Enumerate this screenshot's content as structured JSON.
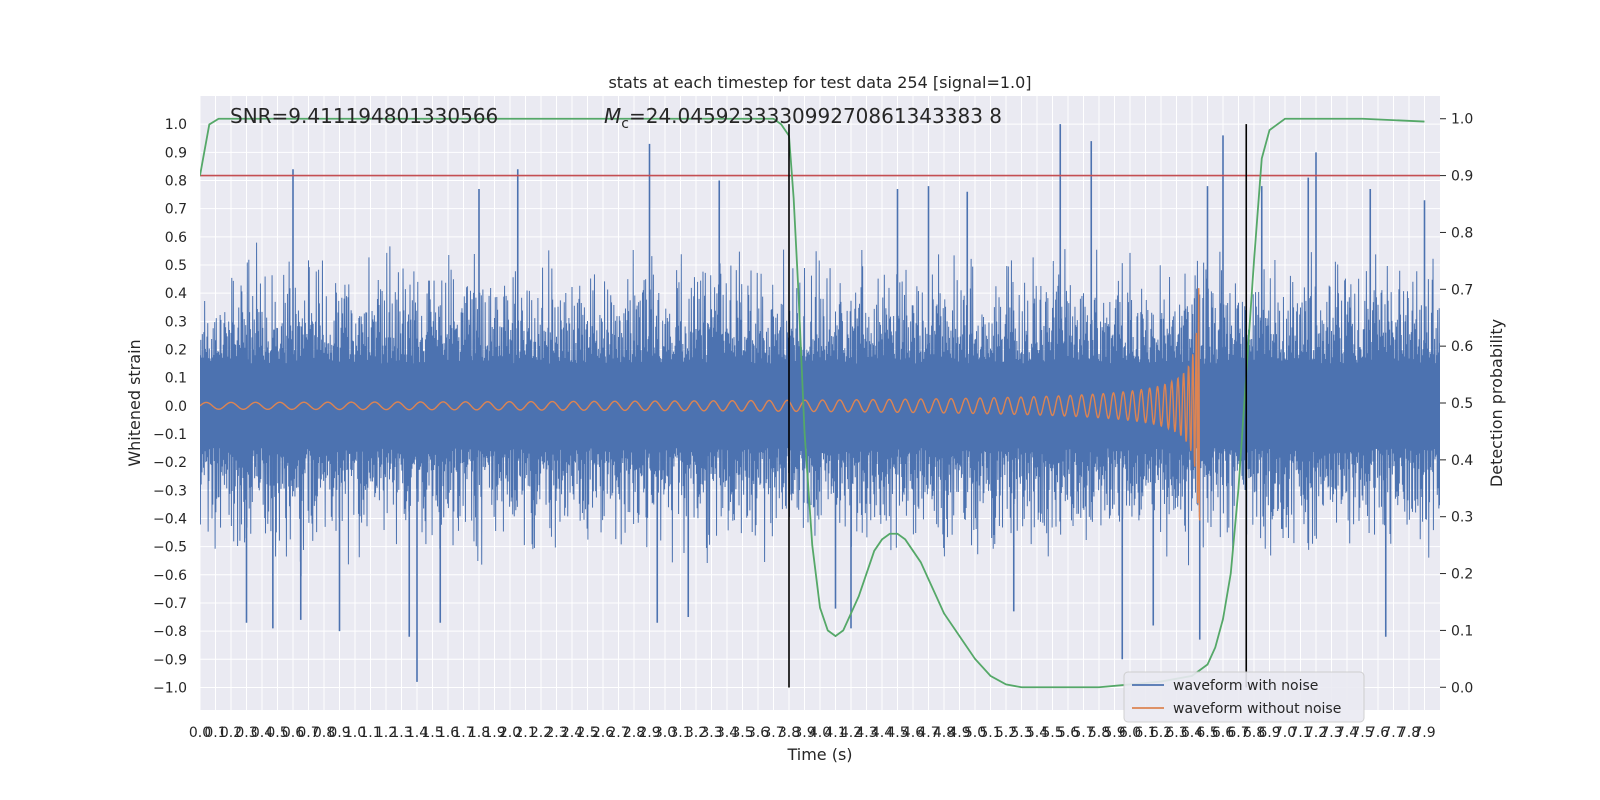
{
  "chart_data": {
    "type": "line",
    "title": "stats at each timestep for test data 254 [signal=1.0]",
    "xlabel": "Time (s)",
    "ylabel_left": "Whitened strain",
    "ylabel_right": "Detection probability",
    "xlim": [
      0.0,
      8.0
    ],
    "ylim_left": [
      -1.08,
      1.1
    ],
    "ylim_right": [
      -0.04,
      1.04
    ],
    "grid": true,
    "legend_position": "bottom-right",
    "annotations": {
      "snr": "SNR=9.411194801330566",
      "mc_prefix": "M",
      "mc_subscript": "c",
      "mc_value": "=24.045923333099270861343383 8"
    },
    "x_ticks": [
      "0.0",
      "0.1",
      "0.2",
      "0.3",
      "0.4",
      "0.5",
      "0.6",
      "0.7",
      "0.8",
      "0.9",
      "1.0",
      "1.1",
      "1.2",
      "1.3",
      "1.4",
      "1.5",
      "1.6",
      "1.7",
      "1.8",
      "1.9",
      "2.0",
      "2.1",
      "2.2",
      "2.3",
      "2.4",
      "2.5",
      "2.6",
      "2.7",
      "2.8",
      "2.9",
      "3.0",
      "3.1",
      "3.2",
      "3.3",
      "3.4",
      "3.5",
      "3.6",
      "3.7",
      "3.8",
      "3.9",
      "4.0",
      "4.1",
      "4.2",
      "4.3",
      "4.4",
      "4.5",
      "4.6",
      "4.7",
      "4.8",
      "4.9",
      "5.0",
      "5.1",
      "5.2",
      "5.3",
      "5.4",
      "5.5",
      "5.6",
      "5.7",
      "5.8",
      "5.9",
      "6.0",
      "6.1",
      "6.2",
      "6.3",
      "6.4",
      "6.5",
      "6.6",
      "6.7",
      "6.8",
      "6.9",
      "7.0",
      "7.1",
      "7.2",
      "7.3",
      "7.4",
      "7.5",
      "7.6",
      "7.7",
      "7.8",
      "7.9"
    ],
    "y_ticks_left": [
      "−1.0",
      "−0.9",
      "−0.8",
      "−0.7",
      "−0.6",
      "−0.5",
      "−0.4",
      "−0.3",
      "−0.2",
      "−0.1",
      "0.0",
      "0.1",
      "0.2",
      "0.3",
      "0.4",
      "0.5",
      "0.6",
      "0.7",
      "0.8",
      "0.9",
      "1.0"
    ],
    "y_ticks_right": [
      "0.0",
      "0.1",
      "0.2",
      "0.3",
      "0.4",
      "0.5",
      "0.6",
      "0.7",
      "0.8",
      "0.9",
      "1.0"
    ],
    "threshold": {
      "axis": "right",
      "value": 0.9,
      "color": "#c44e52"
    },
    "vertical_markers": [
      3.8,
      6.75
    ],
    "series": [
      {
        "name": "waveform with noise",
        "axis": "left",
        "color": "#4c72b0",
        "description_values": {
          "typical_abs_amplitude": 0.35,
          "max_spike": 1.0,
          "min_spike": -0.98
        },
        "spikes": [
          [
            0.6,
            0.84
          ],
          [
            2.05,
            0.84
          ],
          [
            2.9,
            0.93
          ],
          [
            5.55,
            1.0
          ],
          [
            5.75,
            0.94
          ],
          [
            6.6,
            0.96
          ],
          [
            7.2,
            0.9
          ],
          [
            1.4,
            -0.98
          ],
          [
            1.35,
            -0.82
          ],
          [
            5.95,
            -0.9
          ],
          [
            4.2,
            -0.79
          ],
          [
            0.3,
            -0.77
          ],
          [
            0.47,
            -0.79
          ],
          [
            0.65,
            -0.76
          ],
          [
            0.9,
            -0.8
          ],
          [
            1.55,
            -0.77
          ],
          [
            2.95,
            -0.77
          ],
          [
            3.15,
            -0.75
          ],
          [
            4.1,
            -0.72
          ],
          [
            5.25,
            -0.73
          ],
          [
            6.15,
            -0.78
          ],
          [
            6.45,
            -0.83
          ],
          [
            7.65,
            -0.82
          ],
          [
            1.8,
            0.77
          ],
          [
            3.35,
            0.8
          ],
          [
            4.5,
            0.77
          ],
          [
            4.7,
            0.78
          ],
          [
            4.95,
            0.76
          ],
          [
            6.5,
            0.78
          ],
          [
            6.85,
            0.78
          ],
          [
            7.15,
            0.81
          ],
          [
            7.55,
            0.77
          ],
          [
            7.9,
            0.73
          ]
        ]
      },
      {
        "name": "waveform without noise",
        "axis": "left",
        "color": "#dd8452",
        "chirp": {
          "start": 0.0,
          "end": 6.45,
          "start_amp": 0.0,
          "peak_amp": 0.42,
          "min_amp": -0.48
        }
      },
      {
        "name": "detection probability",
        "axis": "right",
        "color": "#55a868",
        "x": [
          0.0,
          0.06,
          0.12,
          0.2,
          0.5,
          1.0,
          2.0,
          3.0,
          3.5,
          3.7,
          3.75,
          3.8,
          3.83,
          3.86,
          3.9,
          3.95,
          4.0,
          4.05,
          4.1,
          4.15,
          4.2,
          4.25,
          4.3,
          4.35,
          4.4,
          4.45,
          4.5,
          4.55,
          4.6,
          4.65,
          4.7,
          4.75,
          4.8,
          4.9,
          5.0,
          5.1,
          5.2,
          5.3,
          5.5,
          5.8,
          6.0,
          6.2,
          6.4,
          6.5,
          6.55,
          6.6,
          6.65,
          6.7,
          6.75,
          6.8,
          6.85,
          6.9,
          6.95,
          7.0,
          7.2,
          7.5,
          7.9
        ],
        "y": [
          0.9,
          0.99,
          1.0,
          1.0,
          1.0,
          1.0,
          1.0,
          1.0,
          1.0,
          1.0,
          0.99,
          0.97,
          0.86,
          0.7,
          0.45,
          0.25,
          0.14,
          0.1,
          0.09,
          0.1,
          0.13,
          0.16,
          0.2,
          0.24,
          0.26,
          0.27,
          0.27,
          0.26,
          0.24,
          0.22,
          0.19,
          0.16,
          0.13,
          0.09,
          0.05,
          0.02,
          0.005,
          0.0,
          0.0,
          0.0,
          0.005,
          0.01,
          0.02,
          0.04,
          0.07,
          0.12,
          0.2,
          0.35,
          0.55,
          0.75,
          0.93,
          0.98,
          0.99,
          1.0,
          1.0,
          1.0,
          0.995
        ]
      }
    ]
  },
  "legend": [
    {
      "label": "waveform with noise",
      "color": "#4c72b0"
    },
    {
      "label": "waveform without noise",
      "color": "#dd8452"
    }
  ]
}
